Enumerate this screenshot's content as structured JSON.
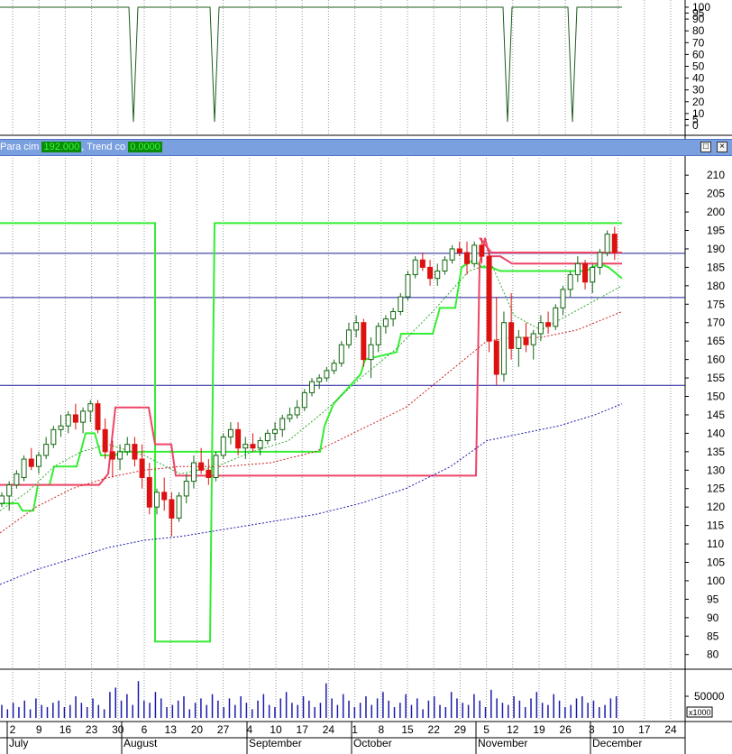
{
  "window": {
    "legend": [
      {
        "label": "Para cim",
        "value": "192.000"
      },
      {
        "label": "Trend co",
        "value": "0.0000"
      }
    ],
    "maximize_icon": "maximize-icon",
    "close_icon": "close-icon",
    "close_glyph": "×"
  },
  "chart_data": [
    {
      "type": "line",
      "panel": "indicator",
      "ylim": [
        0,
        100
      ],
      "yticks": [
        0,
        5,
        10,
        20,
        30,
        40,
        50,
        60,
        70,
        80,
        90,
        95,
        100
      ],
      "grid": true,
      "color": "#1a5e1a",
      "series": [
        {
          "points": [
            [
              0,
              100
            ],
            [
              143,
              100
            ],
            [
              148,
              3
            ],
            [
              153,
              100
            ],
            [
              233,
              100
            ],
            [
              238,
              3
            ],
            [
              243,
              100
            ],
            [
              558,
              100
            ],
            [
              563,
              3
            ],
            [
              568,
              100
            ],
            [
              630,
              100
            ],
            [
              635,
              3
            ],
            [
              640,
              100
            ],
            [
              690,
              100
            ]
          ]
        }
      ]
    },
    {
      "type": "candlestick",
      "panel": "price",
      "ylim": [
        77,
        212
      ],
      "yticks": [
        80,
        85,
        90,
        95,
        100,
        105,
        110,
        115,
        120,
        125,
        130,
        135,
        140,
        145,
        150,
        155,
        160,
        165,
        170,
        175,
        180,
        185,
        190,
        195,
        200,
        205,
        210
      ],
      "hlines": [
        188.8,
        176.8,
        153
      ],
      "grid": true,
      "candles_x_start": 2,
      "candles_x_step": 5.9,
      "candles": [
        [
          121,
          124,
          120,
          123
        ],
        [
          123,
          127,
          119,
          126
        ],
        [
          126,
          130,
          125,
          129
        ],
        [
          128,
          134,
          127,
          133
        ],
        [
          133,
          136,
          130,
          131
        ],
        [
          131,
          135,
          129,
          134
        ],
        [
          134,
          139,
          133,
          137
        ],
        [
          137,
          142,
          136,
          141
        ],
        [
          141,
          145,
          139,
          142
        ],
        [
          142,
          146,
          140,
          145
        ],
        [
          145,
          148,
          141,
          143
        ],
        [
          143,
          147,
          140,
          146
        ],
        [
          146,
          149,
          143,
          148
        ],
        [
          148,
          149,
          140,
          141
        ],
        [
          141,
          144,
          133,
          135
        ],
        [
          135,
          138,
          128,
          133
        ],
        [
          133,
          137,
          130,
          135
        ],
        [
          135,
          139,
          134,
          137
        ],
        [
          137,
          139,
          131,
          133
        ],
        [
          133,
          137,
          125,
          128
        ],
        [
          128,
          132,
          118,
          120
        ],
        [
          120,
          125,
          118,
          124
        ],
        [
          124,
          128,
          119,
          122
        ],
        [
          122,
          124,
          112,
          117
        ],
        [
          117,
          124,
          116,
          123
        ],
        [
          123,
          129,
          121,
          127
        ],
        [
          127,
          134,
          125,
          132
        ],
        [
          132,
          136,
          129,
          130
        ],
        [
          130,
          133,
          126,
          128
        ],
        [
          128,
          135,
          127,
          134
        ],
        [
          134,
          140,
          133,
          139
        ],
        [
          139,
          143,
          137,
          141
        ],
        [
          141,
          143,
          134,
          136
        ],
        [
          136,
          139,
          133,
          137
        ],
        [
          137,
          140,
          135,
          136
        ],
        [
          136,
          139,
          134,
          138
        ],
        [
          138,
          141,
          137,
          140
        ],
        [
          140,
          143,
          138,
          141
        ],
        [
          141,
          145,
          139,
          144
        ],
        [
          144,
          147,
          143,
          145
        ],
        [
          145,
          149,
          144,
          147
        ],
        [
          147,
          152,
          146,
          151
        ],
        [
          151,
          155,
          150,
          154
        ],
        [
          154,
          156,
          152,
          155
        ],
        [
          155,
          158,
          154,
          157
        ],
        [
          157,
          160,
          156,
          159
        ],
        [
          159,
          165,
          158,
          164
        ],
        [
          164,
          170,
          163,
          168
        ],
        [
          168,
          172,
          166,
          170
        ],
        [
          170,
          171,
          158,
          160
        ],
        [
          160,
          166,
          155,
          164
        ],
        [
          164,
          170,
          162,
          169
        ],
        [
          169,
          172,
          167,
          171
        ],
        [
          171,
          174,
          169,
          173
        ],
        [
          173,
          178,
          172,
          177
        ],
        [
          177,
          184,
          176,
          183
        ],
        [
          183,
          188,
          182,
          187
        ],
        [
          187,
          189,
          184,
          185
        ],
        [
          185,
          187,
          180,
          182
        ],
        [
          182,
          186,
          180,
          184
        ],
        [
          184,
          188,
          183,
          187
        ],
        [
          187,
          191,
          186,
          190
        ],
        [
          190,
          192,
          188,
          189
        ],
        [
          189,
          192,
          183,
          186
        ],
        [
          186,
          192,
          185,
          191
        ],
        [
          191,
          193,
          186,
          188
        ],
        [
          188,
          189,
          162,
          165
        ],
        [
          165,
          177,
          153,
          156
        ],
        [
          156,
          173,
          154,
          170
        ],
        [
          170,
          178,
          160,
          163
        ],
        [
          163,
          168,
          158,
          166
        ],
        [
          166,
          170,
          162,
          164
        ],
        [
          164,
          168,
          160,
          167
        ],
        [
          167,
          172,
          165,
          170
        ],
        [
          170,
          173,
          167,
          169
        ],
        [
          169,
          175,
          168,
          174
        ],
        [
          174,
          180,
          172,
          179
        ],
        [
          179,
          184,
          177,
          183
        ],
        [
          183,
          188,
          181,
          186
        ],
        [
          186,
          187,
          179,
          181
        ],
        [
          181,
          186,
          178,
          185
        ],
        [
          185,
          190,
          183,
          189
        ],
        [
          189,
          195,
          188,
          194
        ],
        [
          194,
          196,
          187,
          189
        ]
      ],
      "series": [
        {
          "style": "stop-green",
          "color": "#33ee33",
          "width": 2,
          "points": [
            [
              0,
              121
            ],
            [
              20,
              121
            ],
            [
              25,
              119
            ],
            [
              37,
              119
            ],
            [
              42,
              126
            ],
            [
              55,
              126
            ],
            [
              60,
              131
            ],
            [
              85,
              131
            ],
            [
              95,
              140
            ],
            [
              105,
              140
            ],
            [
              112,
              134
            ],
            [
              128,
              134
            ],
            [
              133,
              135
            ],
            [
              233,
              135
            ],
            [
              355,
              135
            ],
            [
              360,
              142
            ],
            [
              370,
              148
            ],
            [
              400,
              156
            ],
            [
              405,
              160
            ],
            [
              440,
              162
            ],
            [
              445,
              167
            ],
            [
              480,
              167
            ],
            [
              488,
              174
            ],
            [
              505,
              174
            ],
            [
              512,
              185
            ],
            [
              525,
              187
            ],
            [
              535,
              185
            ],
            [
              545,
              185
            ],
            [
              555,
              184
            ],
            [
              650,
              184
            ],
            [
              665,
              186
            ],
            [
              675,
              185
            ],
            [
              690,
              182
            ]
          ]
        },
        {
          "style": "stop-green",
          "color": "#33ee33",
          "width": 2,
          "points": [
            [
              0,
              197
            ],
            [
              165,
              197
            ],
            [
              165,
              197
            ],
            [
              172,
              197
            ],
            [
              172,
              83.5
            ],
            [
              233,
              83.5
            ],
            [
              238,
              197
            ],
            [
              690,
              197
            ]
          ]
        },
        {
          "style": "stop-red",
          "color": "#ee4466",
          "width": 2,
          "points": [
            [
              0,
              126
            ],
            [
              14,
              126
            ],
            [
              14,
              126
            ],
            [
              110,
              126
            ],
            [
              120,
              129
            ],
            [
              128,
              147
            ],
            [
              165,
              147
            ],
            [
              172,
              137
            ],
            [
              190,
              137
            ],
            [
              195,
              128.5
            ],
            [
              528,
              128.5
            ],
            [
              532,
              186
            ],
            [
              538,
              193
            ],
            [
              543,
              188
            ],
            [
              555,
              188
            ],
            [
              568,
              186
            ],
            [
              690,
              186
            ]
          ]
        },
        {
          "style": "stop-red",
          "color": "#ee4466",
          "width": 2,
          "points": [
            [
              532,
              193
            ],
            [
              545,
              189
            ],
            [
              690,
              189
            ]
          ]
        },
        {
          "style": "dashed",
          "color": "#cc2222",
          "width": 1,
          "points": [
            [
              0,
              113
            ],
            [
              40,
              120
            ],
            [
              80,
              125
            ],
            [
              120,
              128
            ],
            [
              160,
              130
            ],
            [
              200,
              131
            ],
            [
              250,
              131
            ],
            [
              300,
              132
            ],
            [
              350,
              135
            ],
            [
              400,
              141
            ],
            [
              450,
              147
            ],
            [
              500,
              157
            ],
            [
              540,
              165
            ],
            [
              570,
              166
            ],
            [
              600,
              166
            ],
            [
              640,
              168
            ],
            [
              690,
              173
            ]
          ]
        },
        {
          "style": "dashed",
          "color": "#1a1aaa",
          "width": 1,
          "points": [
            [
              0,
              99
            ],
            [
              40,
              103
            ],
            [
              80,
              106
            ],
            [
              120,
              109
            ],
            [
              160,
              111
            ],
            [
              200,
              112
            ],
            [
              250,
              114
            ],
            [
              300,
              116
            ],
            [
              350,
              118
            ],
            [
              400,
              121
            ],
            [
              450,
              125
            ],
            [
              500,
              131
            ],
            [
              540,
              138
            ],
            [
              580,
              140
            ],
            [
              620,
              142
            ],
            [
              660,
              145
            ],
            [
              690,
              148
            ]
          ]
        },
        {
          "style": "dashed",
          "color": "#33aa33",
          "width": 1,
          "points": [
            [
              0,
              119
            ],
            [
              30,
              124
            ],
            [
              60,
              131
            ],
            [
              90,
              135
            ],
            [
              120,
              137
            ],
            [
              160,
              134
            ],
            [
              200,
              129
            ],
            [
              240,
              131
            ],
            [
              280,
              135
            ],
            [
              320,
              138
            ],
            [
              360,
              146
            ],
            [
              400,
              155
            ],
            [
              440,
              163
            ],
            [
              480,
              173
            ],
            [
              520,
              184
            ],
            [
              545,
              186
            ],
            [
              570,
              172
            ],
            [
              600,
              168
            ],
            [
              630,
              172
            ],
            [
              660,
              176
            ],
            [
              690,
              180
            ]
          ]
        }
      ]
    },
    {
      "type": "bar",
      "panel": "volume",
      "ylabel": "x1000",
      "yticks": [
        50000
      ],
      "ylim": [
        0,
        100000
      ],
      "values": [
        30000,
        20000,
        35000,
        25000,
        40000,
        20000,
        45000,
        30000,
        25000,
        35000,
        40000,
        25000,
        30000,
        50000,
        35000,
        25000,
        45000,
        30000,
        20000,
        60000,
        70000,
        40000,
        55000,
        30000,
        85000,
        40000,
        35000,
        60000,
        45000,
        25000,
        30000,
        40000,
        50000,
        20000,
        35000,
        45000,
        30000,
        55000,
        40000,
        25000,
        45000,
        30000,
        50000,
        35000,
        20000,
        40000,
        55000,
        30000,
        25000,
        45000,
        60000,
        35000,
        30000,
        50000,
        40000,
        25000,
        35000,
        80000,
        45000,
        30000,
        55000,
        40000,
        25000,
        35000,
        50000,
        30000,
        45000,
        60000,
        40000,
        25000,
        35000,
        55000,
        30000,
        45000,
        20000,
        40000,
        50000,
        30000,
        25000,
        60000,
        45000,
        35000,
        30000,
        55000,
        40000,
        25000,
        65000,
        45000,
        35000,
        30000,
        50000,
        40000,
        25000,
        45000,
        60000,
        35000,
        30000,
        55000,
        40000,
        25000,
        30000,
        45000,
        50000,
        35000,
        40000,
        25000,
        30000,
        45000,
        50000
      ]
    }
  ],
  "xaxis": {
    "days": [
      "2",
      "9",
      "16",
      "23",
      "30",
      "6",
      "13",
      "20",
      "27",
      "4",
      "10",
      "17",
      "24",
      "1",
      "8",
      "15",
      "22",
      "29",
      "5",
      "12",
      "19",
      "26",
      "3",
      "10",
      "17",
      "24"
    ],
    "months": [
      "July",
      "August",
      "September",
      "October",
      "November",
      "December"
    ]
  }
}
